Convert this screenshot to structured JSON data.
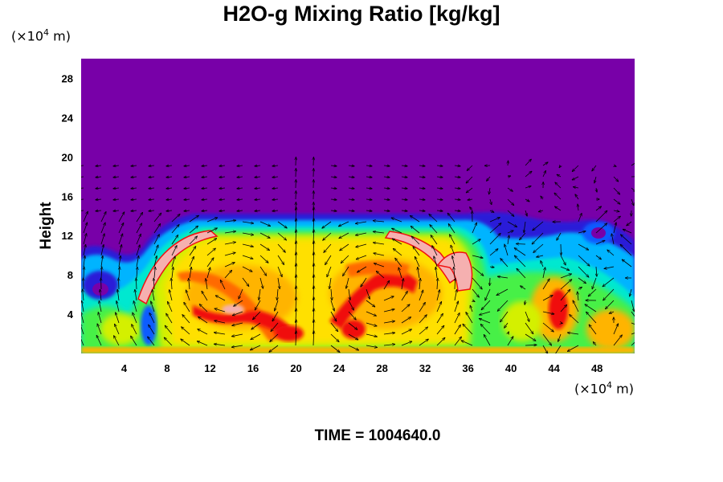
{
  "title": "H2O-g Mixing Ratio [kg/kg]",
  "y_unit_prefix": "(×10",
  "y_unit_exp": "4",
  "y_unit_suffix": " m)",
  "x_unit_prefix": "(×10",
  "x_unit_exp": "4",
  "x_unit_suffix": " m)",
  "ylabel": "Height",
  "time_label": "TIME = 1004640.0",
  "chart_data": {
    "type": "heatmap",
    "title": "H2O-g Mixing Ratio [kg/kg]",
    "xlabel": "",
    "ylabel": "Height",
    "x_ticks": [
      "4",
      "8",
      "12",
      "16",
      "20",
      "24",
      "28",
      "32",
      "36",
      "40",
      "44",
      "48"
    ],
    "y_ticks": [
      "4",
      "8",
      "12",
      "16",
      "20",
      "24",
      "28"
    ],
    "x_tick_values": [
      4,
      8,
      12,
      16,
      20,
      24,
      28,
      32,
      36,
      40,
      44,
      48
    ],
    "y_tick_values": [
      4,
      8,
      12,
      16,
      20,
      24,
      28
    ],
    "xlim": [
      0,
      51.5
    ],
    "ylim": [
      0,
      30
    ],
    "overlay": "wind vector arrows",
    "colormap": [
      "#7800a8",
      "#2b1bd8",
      "#0a5cff",
      "#00b4ff",
      "#00e8d0",
      "#46f046",
      "#d4f000",
      "#ffb400",
      "#ff6a00",
      "#f01010",
      "#f5b0b0"
    ]
  }
}
